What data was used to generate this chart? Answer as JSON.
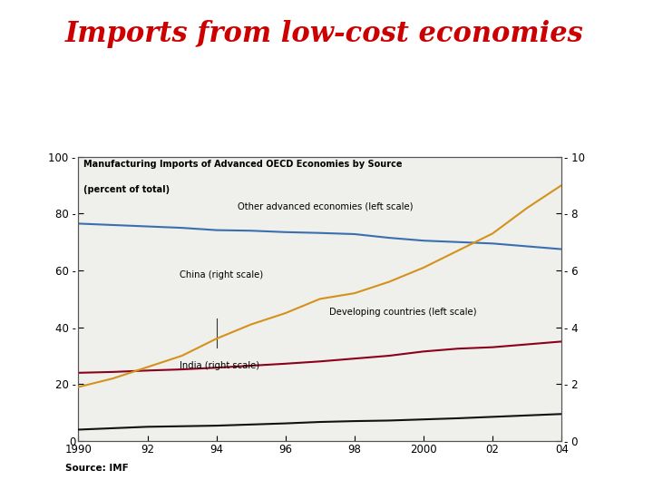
{
  "title": "Imports from low-cost economies",
  "title_color": "#cc0000",
  "title_fontsize": 22,
  "source_text": "Source: IMF",
  "chart_title": "Manufacturing Imports of Advanced OECD Economies by Source",
  "chart_subtitle": "(percent of total)",
  "years": [
    1990,
    1991,
    1992,
    1993,
    1994,
    1995,
    1996,
    1997,
    1998,
    1999,
    2000,
    2001,
    2002,
    2003,
    2004
  ],
  "other_advanced": [
    76.5,
    76.0,
    75.5,
    75.0,
    74.2,
    74.0,
    73.5,
    73.2,
    72.8,
    71.5,
    70.5,
    70.0,
    69.5,
    68.5,
    67.5
  ],
  "other_advanced_color": "#3a6faf",
  "other_advanced_label": "Other advanced economies (left scale)",
  "developing": [
    24.0,
    24.3,
    24.8,
    25.2,
    25.8,
    26.5,
    27.2,
    28.0,
    29.0,
    30.0,
    31.5,
    32.5,
    33.0,
    34.0,
    35.0
  ],
  "developing_color": "#8b001a",
  "developing_label": "Developing countries (left scale)",
  "china_right": [
    1.9,
    2.2,
    2.6,
    3.0,
    3.6,
    4.1,
    4.5,
    5.0,
    5.2,
    5.6,
    6.1,
    6.7,
    7.3,
    8.2,
    9.0
  ],
  "china_color": "#d4921a",
  "china_label": "China (right scale)",
  "india_right": [
    0.4,
    0.45,
    0.5,
    0.52,
    0.54,
    0.58,
    0.62,
    0.67,
    0.7,
    0.72,
    0.76,
    0.8,
    0.85,
    0.9,
    0.95
  ],
  "india_color": "#111111",
  "india_label": "India (right scale)",
  "left_ylim": [
    0,
    100
  ],
  "left_yticks": [
    0,
    20,
    40,
    60,
    80,
    100
  ],
  "right_ylim": [
    0,
    10
  ],
  "right_yticks": [
    0,
    2,
    4,
    6,
    8,
    10
  ],
  "xticks": [
    1990,
    1992,
    1994,
    1996,
    1998,
    2000,
    2002,
    2004
  ],
  "xticklabels": [
    "1990",
    "92",
    "94",
    "96",
    "98",
    "2000",
    "02",
    "04"
  ],
  "bg_color": "#ffffff",
  "plot_bg_color": "#efefeb"
}
